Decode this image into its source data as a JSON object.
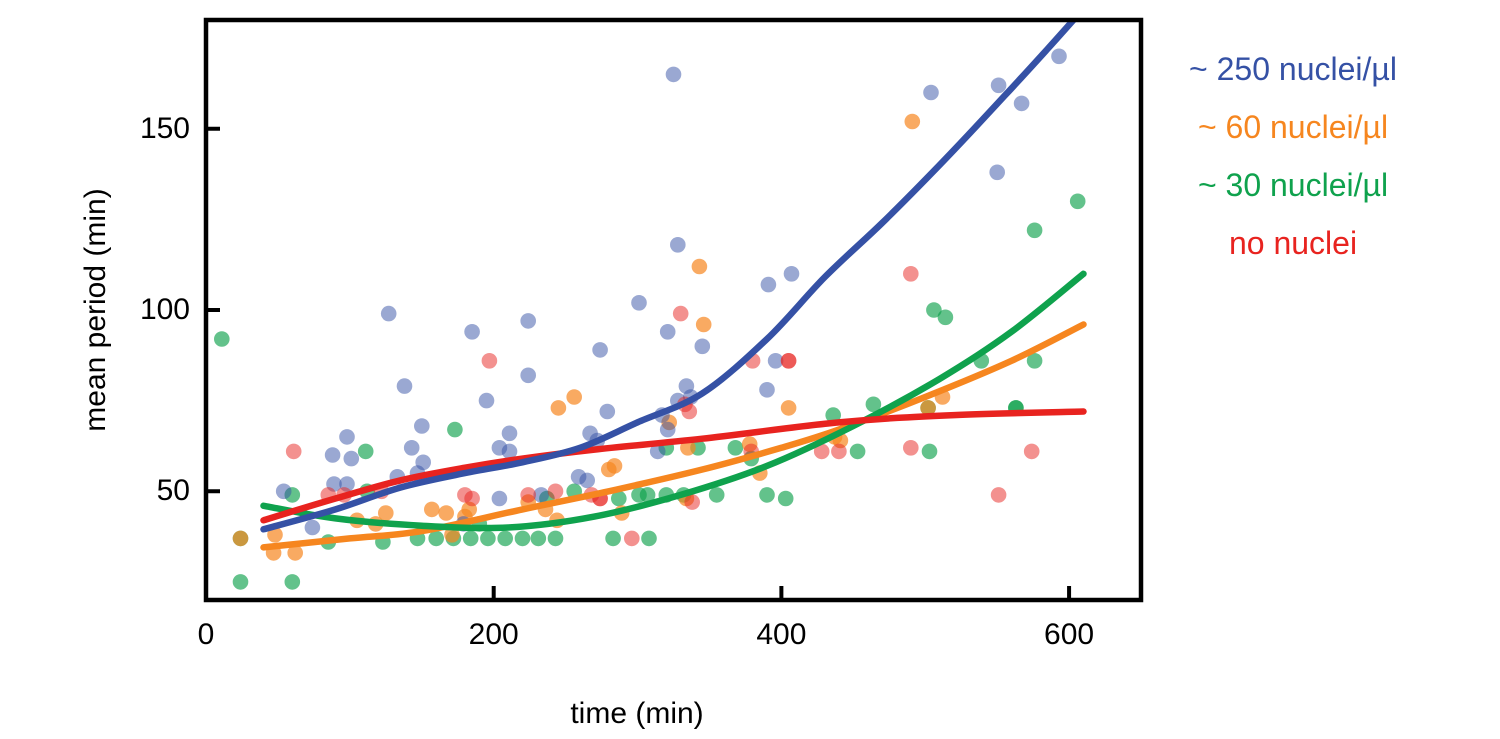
{
  "figure": {
    "background": "#ffffff",
    "frame_color": "#000000",
    "text_color": "#000000"
  },
  "chart_data": {
    "type": "scatter",
    "title": "",
    "xlabel": "time (min)",
    "ylabel": "mean period (min)",
    "axes": {
      "xlim": [
        0,
        650
      ],
      "ylim": [
        20,
        180
      ],
      "x_ticks": [
        0,
        200,
        400,
        600
      ],
      "y_ticks": [
        50,
        100,
        150
      ],
      "grid": false,
      "ticks_direction": "in",
      "legend_position": "right-outside"
    },
    "series": [
      {
        "name": "~ 250 nuclei/µl",
        "color": "#3551A5",
        "point_color": "rgba(53,81,165,0.5)",
        "points": [
          [
            54,
            50
          ],
          [
            74,
            40
          ],
          [
            88,
            60
          ],
          [
            89,
            52
          ],
          [
            98,
            65
          ],
          [
            98,
            52
          ],
          [
            101,
            59
          ],
          [
            127,
            99
          ],
          [
            133,
            54
          ],
          [
            138,
            79
          ],
          [
            143,
            62
          ],
          [
            147,
            55
          ],
          [
            150,
            68
          ],
          [
            151,
            58
          ],
          [
            179,
            41
          ],
          [
            185,
            94
          ],
          [
            195,
            75
          ],
          [
            204,
            62
          ],
          [
            204,
            48
          ],
          [
            211,
            66
          ],
          [
            211,
            61
          ],
          [
            224,
            97
          ],
          [
            224,
            82
          ],
          [
            233,
            49
          ],
          [
            259,
            54
          ],
          [
            265,
            53
          ],
          [
            267,
            66
          ],
          [
            272,
            64
          ],
          [
            274,
            89
          ],
          [
            279,
            72
          ],
          [
            301,
            102
          ],
          [
            314,
            61
          ],
          [
            317,
            71
          ],
          [
            321,
            67
          ],
          [
            321,
            94
          ],
          [
            325,
            165
          ],
          [
            328,
            75
          ],
          [
            328,
            118
          ],
          [
            334,
            79
          ],
          [
            337,
            76
          ],
          [
            345,
            90
          ],
          [
            390,
            78
          ],
          [
            391,
            107
          ],
          [
            396,
            86
          ],
          [
            407,
            110
          ],
          [
            504,
            160
          ],
          [
            550,
            138
          ],
          [
            551,
            162
          ],
          [
            567,
            157
          ],
          [
            593,
            170
          ]
        ],
        "fit_curve": [
          [
            40,
            39.5
          ],
          [
            90,
            45
          ],
          [
            135,
            51
          ],
          [
            180,
            55
          ],
          [
            220,
            58
          ],
          [
            260,
            62
          ],
          [
            300,
            69
          ],
          [
            345,
            77
          ],
          [
            390,
            92
          ],
          [
            430,
            109
          ],
          [
            470,
            124
          ],
          [
            510,
            140
          ],
          [
            555,
            159
          ],
          [
            585,
            172
          ],
          [
            612,
            184
          ]
        ]
      },
      {
        "name": "~ 60 nuclei/µl",
        "color": "#F6861F",
        "point_color": "rgba(246,134,31,0.7)",
        "points": [
          [
            24,
            37
          ],
          [
            47,
            33
          ],
          [
            48,
            38
          ],
          [
            62,
            33
          ],
          [
            105,
            42
          ],
          [
            118,
            41
          ],
          [
            125,
            44
          ],
          [
            157,
            45
          ],
          [
            167,
            44
          ],
          [
            171,
            38
          ],
          [
            180,
            43
          ],
          [
            183,
            45
          ],
          [
            224,
            47
          ],
          [
            236,
            45
          ],
          [
            244,
            42
          ],
          [
            245,
            73
          ],
          [
            256,
            76
          ],
          [
            280,
            56
          ],
          [
            284,
            57
          ],
          [
            289,
            44
          ],
          [
            322,
            69
          ],
          [
            334,
            48
          ],
          [
            335,
            62
          ],
          [
            343,
            112
          ],
          [
            346,
            96
          ],
          [
            378,
            63
          ],
          [
            385,
            55
          ],
          [
            405,
            73
          ],
          [
            437,
            65
          ],
          [
            441,
            64
          ],
          [
            491,
            152
          ],
          [
            502,
            73
          ],
          [
            512,
            76
          ]
        ],
        "fit_curve": [
          [
            40,
            34.5
          ],
          [
            100,
            37
          ],
          [
            150,
            39
          ],
          [
            220,
            45
          ],
          [
            280,
            50
          ],
          [
            345,
            56
          ],
          [
            400,
            62
          ],
          [
            440,
            67
          ],
          [
            500,
            76
          ],
          [
            560,
            86
          ],
          [
            610,
            96
          ]
        ]
      },
      {
        "name": "~ 30 nuclei/µl",
        "color": "#0FA24D",
        "point_color": "rgba(15,162,77,0.65)",
        "points": [
          [
            11,
            92
          ],
          [
            24,
            37
          ],
          [
            24,
            25
          ],
          [
            60,
            49
          ],
          [
            60,
            25
          ],
          [
            85,
            36
          ],
          [
            111,
            61
          ],
          [
            112,
            50
          ],
          [
            123,
            36
          ],
          [
            147,
            37
          ],
          [
            160,
            37
          ],
          [
            172,
            37
          ],
          [
            173,
            67
          ],
          [
            184,
            37
          ],
          [
            190,
            41
          ],
          [
            196,
            37
          ],
          [
            208,
            37
          ],
          [
            220,
            37
          ],
          [
            231,
            37
          ],
          [
            237,
            48
          ],
          [
            243,
            37
          ],
          [
            256,
            50
          ],
          [
            283,
            37
          ],
          [
            287,
            48
          ],
          [
            301,
            49
          ],
          [
            307,
            49
          ],
          [
            308,
            37
          ],
          [
            320,
            49
          ],
          [
            320,
            62
          ],
          [
            332,
            49
          ],
          [
            342,
            62
          ],
          [
            355,
            49
          ],
          [
            368,
            62
          ],
          [
            379,
            59
          ],
          [
            390,
            49
          ],
          [
            403,
            48
          ],
          [
            436,
            71
          ],
          [
            453,
            61
          ],
          [
            464,
            74
          ],
          [
            502,
            73
          ],
          [
            503,
            61
          ],
          [
            506,
            100
          ],
          [
            514,
            98
          ],
          [
            539,
            86
          ],
          [
            563,
            73
          ],
          [
            563,
            73
          ],
          [
            576,
            86
          ],
          [
            576,
            122
          ],
          [
            606,
            130
          ]
        ],
        "fit_curve": [
          [
            40,
            46
          ],
          [
            90,
            42.5
          ],
          [
            150,
            40.5
          ],
          [
            210,
            40
          ],
          [
            270,
            43
          ],
          [
            330,
            49
          ],
          [
            390,
            57
          ],
          [
            450,
            68
          ],
          [
            510,
            81
          ],
          [
            560,
            94
          ],
          [
            610,
            110
          ]
        ]
      },
      {
        "name": "no nuclei",
        "color": "#E8231F",
        "point_color": "rgba(232,35,31,0.5)",
        "points": [
          [
            61,
            61
          ],
          [
            85,
            49
          ],
          [
            96,
            49
          ],
          [
            122,
            50
          ],
          [
            180,
            49
          ],
          [
            185,
            48
          ],
          [
            197,
            86
          ],
          [
            224,
            49
          ],
          [
            243,
            50
          ],
          [
            268,
            49
          ],
          [
            274,
            48
          ],
          [
            274,
            48
          ],
          [
            296,
            37
          ],
          [
            330,
            99
          ],
          [
            333,
            74
          ],
          [
            336,
            72
          ],
          [
            338,
            47
          ],
          [
            379,
            61
          ],
          [
            380,
            86
          ],
          [
            405,
            86
          ],
          [
            405,
            86
          ],
          [
            428,
            61
          ],
          [
            440,
            61
          ],
          [
            490,
            110
          ],
          [
            490,
            62
          ],
          [
            551,
            49
          ],
          [
            574,
            61
          ]
        ],
        "fit_curve": [
          [
            40,
            42
          ],
          [
            90,
            48
          ],
          [
            135,
            53
          ],
          [
            180,
            56.5
          ],
          [
            220,
            59
          ],
          [
            270,
            61.5
          ],
          [
            345,
            64.5
          ],
          [
            440,
            69
          ],
          [
            520,
            71
          ],
          [
            610,
            72
          ]
        ]
      }
    ]
  }
}
